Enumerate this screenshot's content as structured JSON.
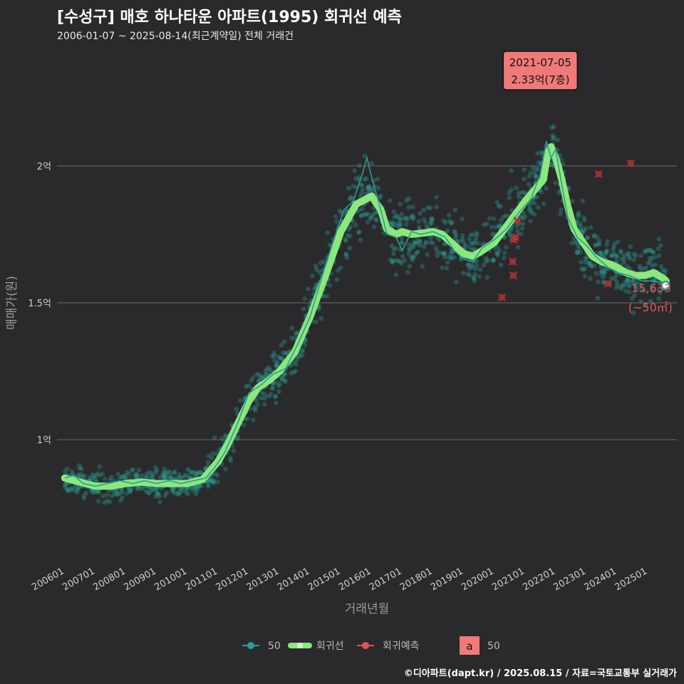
{
  "header": {
    "title": "[수성구] 매호 하나타운 아파트(1995) 회귀선 예측",
    "subtitle": "2006-01-07 ~ 2025-08-14(최근계약일) 전체 거래건"
  },
  "credit": "©디아파트(dapt.kr) / 2025.08.15 / 자료=국토교통부 실거래가",
  "colors": {
    "background": "#2a2a2c",
    "points": "#2a9d96",
    "trend_thin": "#2a9d96",
    "regression": "#8ce87c",
    "prediction": "#e05555",
    "label_box": "#f07a78",
    "grid": "#6a6a6a"
  },
  "chart_data": {
    "type": "scatter",
    "xlabel": "거래년월",
    "ylabel": "매매가(원)",
    "xlim": [
      2005.75,
      2025.95
    ],
    "ylim": [
      0.55,
      2.45
    ],
    "yticks": [
      {
        "value": 1.0,
        "label": "1억"
      },
      {
        "value": 1.5,
        "label": "1.5억"
      },
      {
        "value": 2.0,
        "label": "2억"
      }
    ],
    "xticks": [
      {
        "value": 2006.0,
        "label": "200601"
      },
      {
        "value": 2007.0,
        "label": "200701"
      },
      {
        "value": 2008.0,
        "label": "200801"
      },
      {
        "value": 2009.0,
        "label": "200901"
      },
      {
        "value": 2010.0,
        "label": "201001"
      },
      {
        "value": 2011.0,
        "label": "201101"
      },
      {
        "value": 2012.0,
        "label": "201201"
      },
      {
        "value": 2013.0,
        "label": "201301"
      },
      {
        "value": 2014.0,
        "label": "201401"
      },
      {
        "value": 2015.0,
        "label": "201501"
      },
      {
        "value": 2016.0,
        "label": "201601"
      },
      {
        "value": 2017.0,
        "label": "201701"
      },
      {
        "value": 2018.0,
        "label": "201801"
      },
      {
        "value": 2019.0,
        "label": "201901"
      },
      {
        "value": 2020.0,
        "label": "202001"
      },
      {
        "value": 2021.0,
        "label": "202101"
      },
      {
        "value": 2022.0,
        "label": "202201"
      },
      {
        "value": 2023.0,
        "label": "202301"
      },
      {
        "value": 2024.0,
        "label": "202401"
      },
      {
        "value": 2025.0,
        "label": "202501"
      }
    ],
    "regression": [
      [
        2006.0,
        0.86
      ],
      [
        2006.5,
        0.845
      ],
      [
        2007.0,
        0.83
      ],
      [
        2007.5,
        0.83
      ],
      [
        2008.0,
        0.84
      ],
      [
        2008.5,
        0.845
      ],
      [
        2009.0,
        0.84
      ],
      [
        2009.5,
        0.84
      ],
      [
        2010.0,
        0.84
      ],
      [
        2010.5,
        0.855
      ],
      [
        2011.0,
        0.92
      ],
      [
        2011.3,
        0.98
      ],
      [
        2011.6,
        1.05
      ],
      [
        2012.0,
        1.14
      ],
      [
        2012.3,
        1.19
      ],
      [
        2012.7,
        1.22
      ],
      [
        2013.0,
        1.25
      ],
      [
        2013.5,
        1.32
      ],
      [
        2014.0,
        1.45
      ],
      [
        2014.5,
        1.6
      ],
      [
        2015.0,
        1.76
      ],
      [
        2015.5,
        1.86
      ],
      [
        2016.0,
        1.89
      ],
      [
        2016.3,
        1.84
      ],
      [
        2016.5,
        1.77
      ],
      [
        2016.8,
        1.75
      ],
      [
        2017.0,
        1.76
      ],
      [
        2017.3,
        1.75
      ],
      [
        2017.7,
        1.755
      ],
      [
        2018.0,
        1.76
      ],
      [
        2018.3,
        1.75
      ],
      [
        2018.6,
        1.72
      ],
      [
        2019.0,
        1.68
      ],
      [
        2019.3,
        1.67
      ],
      [
        2019.6,
        1.69
      ],
      [
        2020.0,
        1.72
      ],
      [
        2020.4,
        1.78
      ],
      [
        2020.8,
        1.84
      ],
      [
        2021.0,
        1.87
      ],
      [
        2021.3,
        1.91
      ],
      [
        2021.6,
        1.95
      ],
      [
        2021.75,
        2.05
      ],
      [
        2021.85,
        2.07
      ],
      [
        2022.0,
        2.03
      ],
      [
        2022.2,
        1.95
      ],
      [
        2022.4,
        1.85
      ],
      [
        2022.6,
        1.77
      ],
      [
        2022.9,
        1.72
      ],
      [
        2023.2,
        1.67
      ],
      [
        2023.5,
        1.65
      ],
      [
        2023.8,
        1.64
      ],
      [
        2024.0,
        1.63
      ],
      [
        2024.3,
        1.61
      ],
      [
        2024.6,
        1.6
      ],
      [
        2024.9,
        1.6
      ],
      [
        2025.2,
        1.61
      ],
      [
        2025.5,
        1.59
      ],
      [
        2025.6,
        1.58
      ]
    ],
    "trend_line": [
      [
        2006.0,
        0.86
      ],
      [
        2006.3,
        0.87
      ],
      [
        2006.6,
        0.84
      ],
      [
        2007.0,
        0.83
      ],
      [
        2007.4,
        0.84
      ],
      [
        2007.8,
        0.85
      ],
      [
        2008.2,
        0.84
      ],
      [
        2008.6,
        0.85
      ],
      [
        2009.0,
        0.84
      ],
      [
        2009.4,
        0.85
      ],
      [
        2009.8,
        0.84
      ],
      [
        2010.2,
        0.85
      ],
      [
        2010.6,
        0.86
      ],
      [
        2010.9,
        0.9
      ],
      [
        2011.2,
        0.95
      ],
      [
        2011.6,
        1.05
      ],
      [
        2012.0,
        1.17
      ],
      [
        2012.4,
        1.2
      ],
      [
        2012.8,
        1.24
      ],
      [
        2013.2,
        1.26
      ],
      [
        2013.6,
        1.35
      ],
      [
        2014.0,
        1.45
      ],
      [
        2014.4,
        1.6
      ],
      [
        2014.8,
        1.74
      ],
      [
        2015.1,
        1.84
      ],
      [
        2015.4,
        1.87
      ],
      [
        2015.7,
        1.97
      ],
      [
        2015.85,
        2.03
      ],
      [
        2016.0,
        1.96
      ],
      [
        2016.3,
        1.84
      ],
      [
        2016.5,
        1.75
      ],
      [
        2016.8,
        1.74
      ],
      [
        2017.0,
        1.69
      ],
      [
        2017.3,
        1.76
      ],
      [
        2017.6,
        1.75
      ],
      [
        2018.0,
        1.76
      ],
      [
        2018.4,
        1.74
      ],
      [
        2018.7,
        1.69
      ],
      [
        2019.0,
        1.66
      ],
      [
        2019.3,
        1.65
      ],
      [
        2019.6,
        1.7
      ],
      [
        2020.0,
        1.73
      ],
      [
        2020.4,
        1.77
      ],
      [
        2020.8,
        1.83
      ],
      [
        2021.2,
        1.88
      ],
      [
        2021.5,
        1.97
      ],
      [
        2021.7,
        2.09
      ],
      [
        2021.85,
        2.03
      ],
      [
        2022.0,
        2.06
      ],
      [
        2022.2,
        1.93
      ],
      [
        2022.4,
        1.81
      ],
      [
        2022.7,
        1.74
      ],
      [
        2023.0,
        1.71
      ],
      [
        2023.3,
        1.67
      ],
      [
        2023.7,
        1.63
      ],
      [
        2024.0,
        1.61
      ],
      [
        2024.4,
        1.6
      ],
      [
        2024.8,
        1.58
      ],
      [
        2025.2,
        1.58
      ],
      [
        2025.5,
        1.57
      ]
    ],
    "predictions": [
      [
        2020.25,
        1.52
      ],
      [
        2020.6,
        1.65
      ],
      [
        2020.65,
        1.73
      ],
      [
        2020.7,
        1.74
      ],
      [
        2020.75,
        1.8
      ],
      [
        2020.62,
        1.6
      ],
      [
        2023.4,
        1.97
      ],
      [
        2023.7,
        1.57
      ],
      [
        2024.45,
        2.01
      ]
    ],
    "last_point": [
      2025.58,
      1.5633
    ],
    "annotation": {
      "date": "2021-07-05",
      "value": "2.33억(7층)",
      "x": 2021.5,
      "y": 2.33
    },
    "last_label": {
      "value": "15,633",
      "area": "(~50㎡)"
    },
    "legend": {
      "series": [
        "50",
        "회귀선",
        "회귀예측"
      ],
      "text_key_glyph": "a",
      "text_key_label": "50"
    }
  }
}
